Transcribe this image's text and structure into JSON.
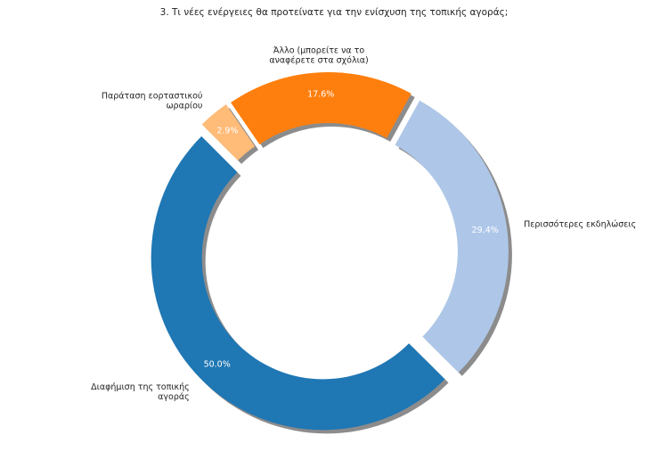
{
  "chart_data": {
    "type": "pie",
    "variant": "donut",
    "title": "3. Τι νέες ενέργειες θα προτείνατε για την ενίσχυση της τοπικής αγοράς;",
    "slices": [
      {
        "label": [
          "Διαφήμιση της τοπικής",
          "αγοράς"
        ],
        "value": 50.0,
        "pct_label": "50.0%",
        "color": "#1f77b4"
      },
      {
        "label": [
          "Περισσότερες εκδηλώσεις"
        ],
        "value": 29.4,
        "pct_label": "29.4%",
        "color": "#aec7e8"
      },
      {
        "label": [
          "Άλλο (μπορείτε να το",
          "αναφέρετε στα σχόλια)"
        ],
        "value": 17.6,
        "pct_label": "17.6%",
        "color": "#ff7f0e"
      },
      {
        "label": [
          "Παράταση εορταστικού",
          "ωραρίου"
        ],
        "value": 2.9,
        "pct_label": "2.9%",
        "color": "#ffbb78"
      }
    ],
    "start_angle": 135,
    "counterclockwise": true,
    "exploded": true,
    "shadow": true
  }
}
